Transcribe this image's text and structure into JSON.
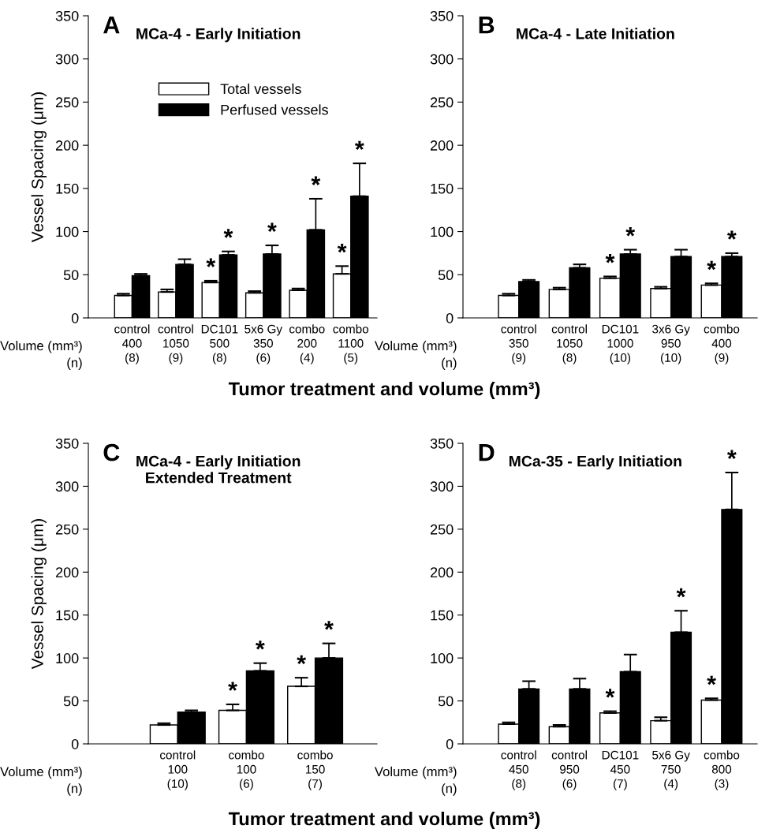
{
  "chart_data": [
    {
      "type": "bar",
      "title": "MCa-4 - Early Initiation",
      "ylabel": "Vessel Spacing (μm)",
      "xlabel": "Tumor treatment and volume (mm³)",
      "annotations": [
        "A",
        "Volume (mm³)",
        "(n)"
      ],
      "categories": [
        "control\n400\n(8)",
        "control\n1050\n(9)",
        "DC101\n500\n(8)",
        "5x6 Gy\n350\n(6)",
        "combo\n200\n(4)",
        "combo\n1100\n(5)"
      ],
      "series": [
        {
          "name": "Total vessels",
          "color": "#ffffff",
          "values": [
            26,
            30,
            41,
            29,
            32,
            51
          ],
          "errors": [
            2,
            3,
            2,
            2,
            2,
            9
          ],
          "value_labels": [
            null,
            null,
            "*",
            null,
            null,
            "*"
          ]
        },
        {
          "name": "Perfused vessels",
          "color": "#000000",
          "values": [
            49,
            62,
            73,
            74,
            102,
            141
          ],
          "errors": [
            2,
            6,
            4,
            10,
            36,
            38
          ],
          "value_labels": [
            null,
            null,
            "*",
            "*",
            "*",
            "*"
          ]
        }
      ],
      "ylim": [
        0,
        350
      ],
      "yticks": [
        0,
        50,
        100,
        150,
        200,
        250,
        300,
        350
      ],
      "legend": "top left",
      "grid": false
    },
    {
      "type": "bar",
      "title": "MCa-4 - Late Initiation",
      "annotations": [
        "B",
        "Volume (mm³)",
        "(n)"
      ],
      "categories": [
        "control\n350\n(9)",
        "control\n1050\n(8)",
        "DC101\n1000\n(10)",
        "3x6 Gy\n950\n(10)",
        "combo\n400\n(9)"
      ],
      "series": [
        {
          "color": "#ffffff",
          "values": [
            26,
            33,
            46,
            34,
            38
          ],
          "errors": [
            2,
            2,
            2,
            2,
            2
          ],
          "value_labels": [
            null,
            null,
            "*",
            null,
            "*"
          ]
        },
        {
          "color": "#000000",
          "values": [
            42,
            58,
            74,
            71,
            71
          ],
          "errors": [
            2,
            4,
            5,
            8,
            4
          ],
          "value_labels": [
            null,
            null,
            "*",
            null,
            "*"
          ]
        }
      ],
      "ylim": [
        0,
        350
      ],
      "yticks": [
        0,
        50,
        100,
        150,
        200,
        250,
        300,
        350
      ],
      "grid": false
    },
    {
      "type": "bar",
      "title": "MCa-4 - Early Initiation\nExtended Treatment",
      "ylabel": "Vessel Spacing (μm)",
      "xlabel": "Tumor treatment and volume (mm³)",
      "annotations": [
        "C",
        "Volume (mm³)",
        "(n)"
      ],
      "categories": [
        "control\n100\n(10)",
        "combo\n100\n(6)",
        "combo\n150\n(7)"
      ],
      "series": [
        {
          "color": "#ffffff",
          "values": [
            22,
            39,
            67
          ],
          "errors": [
            2,
            7,
            10
          ],
          "value_labels": [
            null,
            "*",
            "*"
          ]
        },
        {
          "color": "#000000",
          "values": [
            37,
            85,
            100
          ],
          "errors": [
            2,
            9,
            17
          ],
          "value_labels": [
            null,
            "*",
            "*"
          ]
        }
      ],
      "ylim": [
        0,
        350
      ],
      "yticks": [
        0,
        50,
        100,
        150,
        200,
        250,
        300,
        350
      ],
      "grid": false
    },
    {
      "type": "bar",
      "title": "MCa-35 - Early Initiation",
      "annotations": [
        "D",
        "Volume (mm³)",
        "(n)"
      ],
      "categories": [
        "control\n450\n(8)",
        "control\n950\n(6)",
        "DC101\n450\n(7)",
        "5x6 Gy\n750\n(4)",
        "combo\n800\n(3)"
      ],
      "series": [
        {
          "color": "#ffffff",
          "values": [
            23,
            20,
            36,
            27,
            51
          ],
          "errors": [
            2,
            2,
            2,
            4,
            2
          ],
          "value_labels": [
            null,
            null,
            "*",
            null,
            "*"
          ]
        },
        {
          "color": "#000000",
          "values": [
            64,
            64,
            84,
            130,
            273
          ],
          "errors": [
            9,
            12,
            20,
            25,
            43
          ],
          "value_labels": [
            null,
            null,
            null,
            "*",
            "*"
          ]
        }
      ],
      "ylim": [
        0,
        350
      ],
      "yticks": [
        0,
        50,
        100,
        150,
        200,
        250,
        300,
        350
      ],
      "grid": false
    }
  ]
}
